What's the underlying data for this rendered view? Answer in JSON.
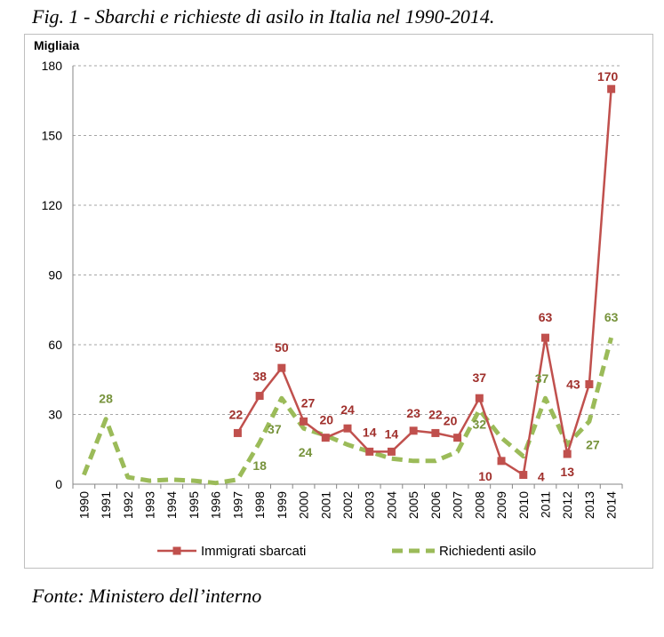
{
  "title": "Fig. 1 - Sbarchi e richieste di asilo in Italia nel 1990-2014.",
  "source": "Fonte: Ministero dell’interno",
  "chart_data": {
    "type": "line",
    "ylabel": "Migliaia",
    "ylim": [
      0,
      180
    ],
    "yticks": [
      0,
      30,
      60,
      90,
      120,
      150,
      180
    ],
    "grid": true,
    "categories": [
      "1990",
      "1991",
      "1992",
      "1993",
      "1994",
      "1995",
      "1996",
      "1997",
      "1998",
      "1999",
      "2000",
      "2001",
      "2002",
      "2003",
      "2004",
      "2005",
      "2006",
      "2007",
      "2008",
      "2009",
      "2010",
      "2011",
      "2012",
      "2013",
      "2014"
    ],
    "series": [
      {
        "name": "Immigrati sbarcati",
        "color": "#c0504d",
        "style": "solid-square-markers",
        "values": [
          null,
          null,
          null,
          null,
          null,
          null,
          null,
          22,
          38,
          50,
          27,
          20,
          24,
          14,
          14,
          23,
          22,
          20,
          37,
          10,
          4,
          63,
          13,
          43,
          170
        ],
        "labels": [
          null,
          null,
          null,
          null,
          null,
          null,
          null,
          "22",
          "38",
          "50",
          "27",
          "20",
          "24",
          "14",
          "14",
          "23",
          "22",
          "20",
          "37",
          "10",
          "4",
          "63",
          "13",
          "43",
          "170"
        ]
      },
      {
        "name": "Richiedenti asilo",
        "color": "#9bbb59",
        "style": "dashed",
        "values": [
          4,
          28,
          3,
          1.5,
          2,
          1.5,
          0.5,
          2,
          18,
          37,
          24,
          21,
          17,
          14,
          11,
          10,
          10,
          14,
          32,
          20,
          12,
          37,
          17,
          27,
          63
        ],
        "labels": [
          null,
          "28",
          null,
          null,
          null,
          null,
          null,
          null,
          "18",
          "37",
          "24",
          null,
          null,
          null,
          null,
          null,
          null,
          null,
          "32",
          null,
          null,
          "37",
          null,
          "27",
          "63"
        ]
      }
    ],
    "legend": "bottom"
  }
}
